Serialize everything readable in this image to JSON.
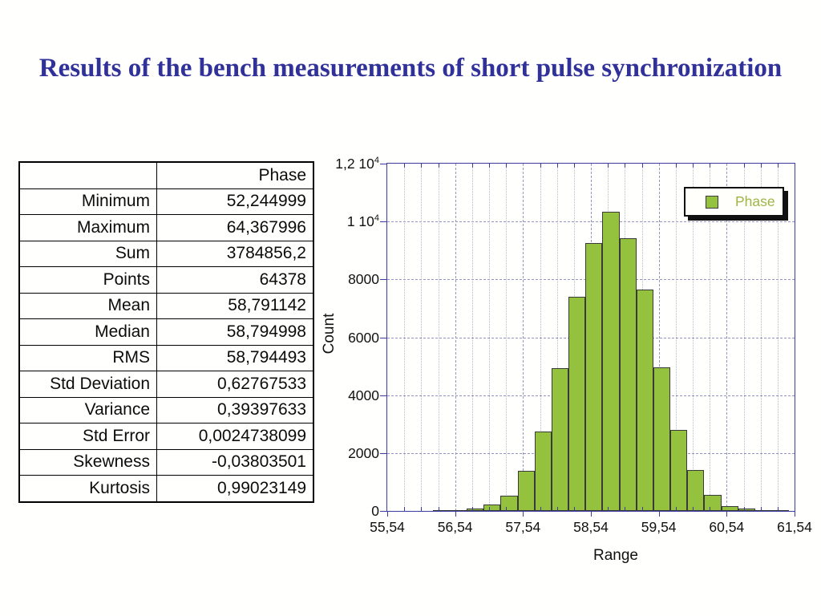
{
  "title": "Results of the bench measurements of short pulse synchronization",
  "title_color": "#31319A",
  "table": {
    "header": {
      "label": "",
      "value": "Phase"
    },
    "rows": [
      {
        "label": "Minimum",
        "value": "52,244999"
      },
      {
        "label": "Maximum",
        "value": "64,367996"
      },
      {
        "label": "Sum",
        "value": "3784856,2"
      },
      {
        "label": "Points",
        "value": "64378"
      },
      {
        "label": "Mean",
        "value": "58,791142"
      },
      {
        "label": "Median",
        "value": "58,794998"
      },
      {
        "label": "RMS",
        "value": "58,794493"
      },
      {
        "label": "Std Deviation",
        "value": "0,62767533"
      },
      {
        "label": "Variance",
        "value": "0,39397633"
      },
      {
        "label": "Std Error",
        "value": "0,0024738099"
      },
      {
        "label": "Skewness",
        "value": "-0,03803501"
      },
      {
        "label": "Kurtosis",
        "value": "0,99023149"
      }
    ]
  },
  "chart_data": {
    "type": "bar",
    "subtype": "histogram",
    "title": "",
    "xlabel": "Range",
    "ylabel": "Count",
    "legend": {
      "label": "Phase",
      "position": "top-right"
    },
    "xlim": [
      55.54,
      61.54
    ],
    "ylim": [
      0,
      12000
    ],
    "xticks": [
      55.54,
      56.54,
      57.54,
      58.54,
      59.54,
      60.54,
      61.54
    ],
    "xtick_labels": [
      "55,54",
      "56,54",
      "57,54",
      "58,54",
      "59,54",
      "60,54",
      "61,54"
    ],
    "yticks": [
      0,
      2000,
      4000,
      6000,
      8000,
      10000,
      12000
    ],
    "ytick_labels": [
      "0",
      "2000",
      "4000",
      "6000",
      "8000",
      "1 10^4",
      "1,2 10^4"
    ],
    "minor_x_step": 0.25,
    "grid": "vertical major dashed + minor dotted, horizontal major dashed",
    "histogram": {
      "bin_start": 56.21,
      "bin_width": 0.25,
      "counts": [
        8,
        30,
        80,
        220,
        530,
        1380,
        2750,
        4930,
        7400,
        9250,
        10350,
        9420,
        7650,
        4950,
        2800,
        1420,
        560,
        160,
        80,
        30,
        10
      ]
    },
    "colors": {
      "bar_fill": "#94C13E",
      "bar_stroke": "#3a3a3a",
      "axis_frame": "#3C3CA0",
      "grid_major": "#9595C2",
      "grid_minor": "#B7B7CB",
      "legend_text": "#9FB544",
      "tick_text": "#111111"
    }
  }
}
